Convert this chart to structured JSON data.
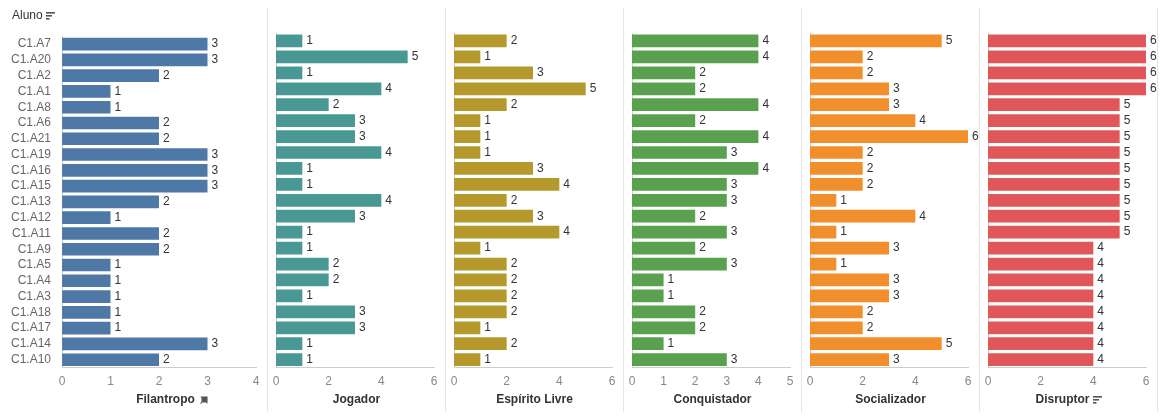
{
  "chart_data": [
    {
      "type": "bar",
      "orientation": "horizontal",
      "ylabel": "Aluno",
      "xlabel": "Filantropo",
      "categories": [
        "C1.A7",
        "C1.A20",
        "C1.A2",
        "C1.A1",
        "C1.A8",
        "C1.A6",
        "C1.A21",
        "C1.A19",
        "C1.A16",
        "C1.A15",
        "C1.A13",
        "C1.A12",
        "C1.A11",
        "C1.A9",
        "C1.A5",
        "C1.A4",
        "C1.A3",
        "C1.A18",
        "C1.A17",
        "C1.A14",
        "C1.A10"
      ],
      "values": [
        3,
        3,
        2,
        1,
        1,
        2,
        2,
        3,
        3,
        3,
        2,
        1,
        2,
        2,
        1,
        1,
        1,
        1,
        1,
        3,
        2
      ],
      "color": "#4e79a7",
      "xlim": [
        0,
        4
      ],
      "xticks": [
        0,
        1,
        2,
        3,
        4
      ],
      "data_labels": true
    },
    {
      "type": "bar",
      "orientation": "horizontal",
      "xlabel": "Jogador",
      "categories": [
        null,
        null,
        null,
        null,
        null,
        null,
        null,
        null,
        null,
        null,
        null,
        null,
        null,
        null,
        null,
        null,
        null,
        null,
        null,
        null,
        null
      ],
      "values": [
        1,
        5,
        1,
        4,
        2,
        3,
        3,
        4,
        1,
        1,
        4,
        3,
        1,
        1,
        2,
        2,
        1,
        3,
        3,
        1,
        1
      ],
      "color": "#499894",
      "xlim": [
        0,
        6
      ],
      "xticks": [
        0,
        2,
        4,
        6
      ],
      "data_labels": true,
      "tick_labels": "x"
    },
    {
      "type": "bar",
      "orientation": "horizontal",
      "xlabel": "Espírito Livre",
      "categories": [
        null,
        null,
        null,
        null,
        null,
        null,
        null,
        null,
        null,
        null,
        null,
        null,
        null,
        null,
        null,
        null,
        null,
        null,
        null,
        null,
        null
      ],
      "values": [
        2,
        1,
        3,
        5,
        2,
        1,
        1,
        1,
        3,
        4,
        2,
        3,
        4,
        1,
        2,
        2,
        2,
        2,
        1,
        2,
        1
      ],
      "color": "#b6992d",
      "xlim": [
        0,
        6
      ],
      "xticks": [
        0,
        2,
        4,
        6
      ],
      "data_labels": true,
      "tick_labels": "x"
    },
    {
      "type": "bar",
      "orientation": "horizontal",
      "xlabel": "Conquistador",
      "categories": [
        null,
        null,
        null,
        null,
        null,
        null,
        null,
        null,
        null,
        null,
        null,
        null,
        null,
        null,
        null,
        null,
        null,
        null,
        null,
        null,
        null
      ],
      "values": [
        4,
        4,
        2,
        2,
        4,
        2,
        4,
        3,
        4,
        3,
        3,
        2,
        3,
        2,
        3,
        1,
        1,
        2,
        2,
        1,
        3
      ],
      "color": "#59a14f",
      "xlim": [
        0,
        5
      ],
      "xticks": [
        0,
        1,
        2,
        3,
        4,
        5
      ],
      "data_labels": true,
      "tick_labels": "x"
    },
    {
      "type": "bar",
      "orientation": "horizontal",
      "xlabel": "Socializador",
      "categories": [
        null,
        null,
        null,
        null,
        null,
        null,
        null,
        null,
        null,
        null,
        null,
        null,
        null,
        null,
        null,
        null,
        null,
        null,
        null,
        null,
        null
      ],
      "values": [
        5,
        2,
        2,
        3,
        3,
        4,
        6,
        2,
        2,
        2,
        1,
        4,
        1,
        3,
        1,
        3,
        3,
        2,
        2,
        5,
        3
      ],
      "color": "#f28e2b",
      "xlim": [
        0,
        6
      ],
      "xticks": [
        0,
        2,
        4,
        6
      ],
      "data_labels": true,
      "tick_labels": "x"
    },
    {
      "type": "bar",
      "orientation": "horizontal",
      "xlabel": "Disruptor",
      "categories": [
        null,
        null,
        null,
        null,
        null,
        null,
        null,
        null,
        null,
        null,
        null,
        null,
        null,
        null,
        null,
        null,
        null,
        null,
        null,
        null,
        null
      ],
      "values": [
        6,
        6,
        6,
        6,
        5,
        5,
        5,
        5,
        5,
        5,
        5,
        5,
        5,
        4,
        4,
        4,
        4,
        4,
        4,
        4,
        4
      ],
      "color": "#e15759",
      "xlim": [
        0,
        6
      ],
      "xticks": [
        0,
        2,
        4,
        6
      ],
      "data_labels": true,
      "tick_labels": "x"
    }
  ]
}
